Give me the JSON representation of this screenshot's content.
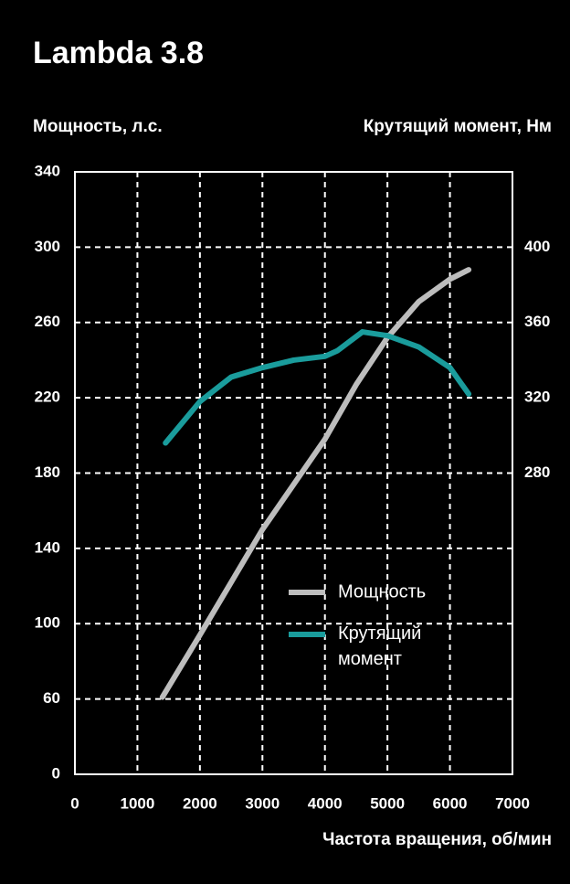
{
  "chart_data": {
    "type": "line",
    "title": "Lambda 3.8",
    "y_label": "Мощность, л.с.",
    "y2_label": "Крутящий момент, Нм",
    "x_label": "Частота вращения, об/мин",
    "xlim": [
      0,
      7000
    ],
    "xticks": [
      0,
      1000,
      2000,
      3000,
      4000,
      5000,
      6000,
      7000
    ],
    "ylim": [
      20,
      340
    ],
    "yticks": [
      {
        "value": 20,
        "label": "0"
      },
      60,
      100,
      140,
      180,
      220,
      260,
      300,
      340
    ],
    "y2lim": [
      120,
      440
    ],
    "y2ticks": [
      280,
      320,
      360,
      400
    ],
    "grid": true,
    "legend": "center-right",
    "series": [
      {
        "name": "Мощность",
        "color": "#bdbdbd",
        "x": [
          1400,
          2000,
          3000,
          4000,
          4500,
          5000,
          5500,
          6000,
          6300
        ],
        "values": [
          61,
          94,
          150,
          198,
          227,
          252,
          271,
          283,
          288
        ]
      },
      {
        "name": "Крутящий момент",
        "color": "#1a9c9c",
        "axis": "y2",
        "x": [
          1450,
          2000,
          2500,
          3000,
          3500,
          4000,
          4200,
          4600,
          5000,
          5500,
          6000,
          6300
        ],
        "values": [
          296,
          318,
          331,
          336,
          340,
          342,
          345,
          355,
          353,
          347,
          336,
          322
        ]
      }
    ]
  }
}
